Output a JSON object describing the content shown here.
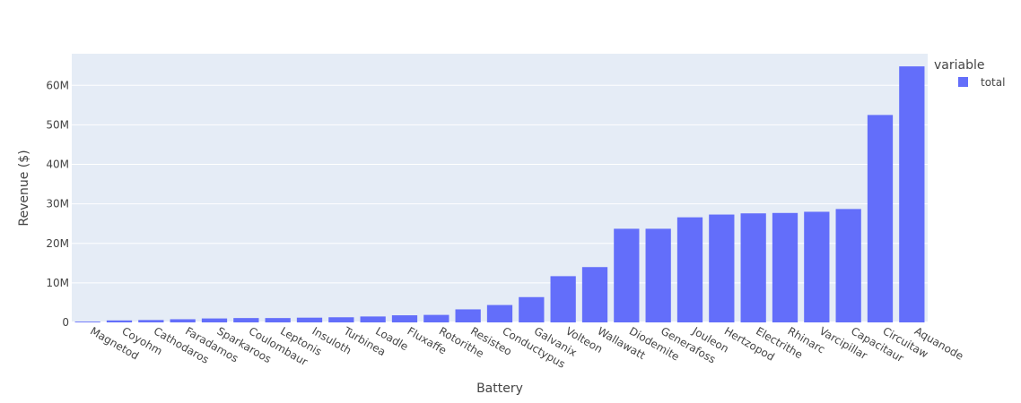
{
  "chart_data": {
    "type": "bar",
    "xlabel": "Battery",
    "ylabel": "Revenue ($)",
    "ylim": [
      0,
      68000000
    ],
    "yticks": [
      0,
      10000000,
      20000000,
      30000000,
      40000000,
      50000000,
      60000000
    ],
    "ytick_labels": [
      "0",
      "10M",
      "20M",
      "30M",
      "40M",
      "50M",
      "60M"
    ],
    "grid": true,
    "legend": {
      "title": "variable",
      "position": "top-right"
    },
    "categories": [
      "Magnetod",
      "Coyohm",
      "Cathodaros",
      "Faradamos",
      "Sparkaroos",
      "Coulombaur",
      "Leptonis",
      "Insuloth",
      "Turbinea",
      "Loadle",
      "Fluxaffe",
      "Rotorithe",
      "Resisteo",
      "Conductypus",
      "Galvanix",
      "Volteon",
      "Wallawatt",
      "Diodemite",
      "Generafoss",
      "Jouleon",
      "Hertzopod",
      "Electrithe",
      "Rhinarc",
      "Varcipillar",
      "Capacitaur",
      "Circuitaw",
      "Aquanode"
    ],
    "series": [
      {
        "name": "total",
        "color": "#636efa",
        "values": [
          200000,
          500000,
          600000,
          800000,
          1000000,
          1100000,
          1100000,
          1200000,
          1300000,
          1500000,
          1800000,
          1900000,
          3300000,
          4400000,
          6400000,
          11700000,
          14000000,
          23700000,
          23700000,
          26600000,
          27300000,
          27600000,
          27700000,
          28000000,
          28700000,
          52500000,
          64800000
        ]
      }
    ]
  }
}
